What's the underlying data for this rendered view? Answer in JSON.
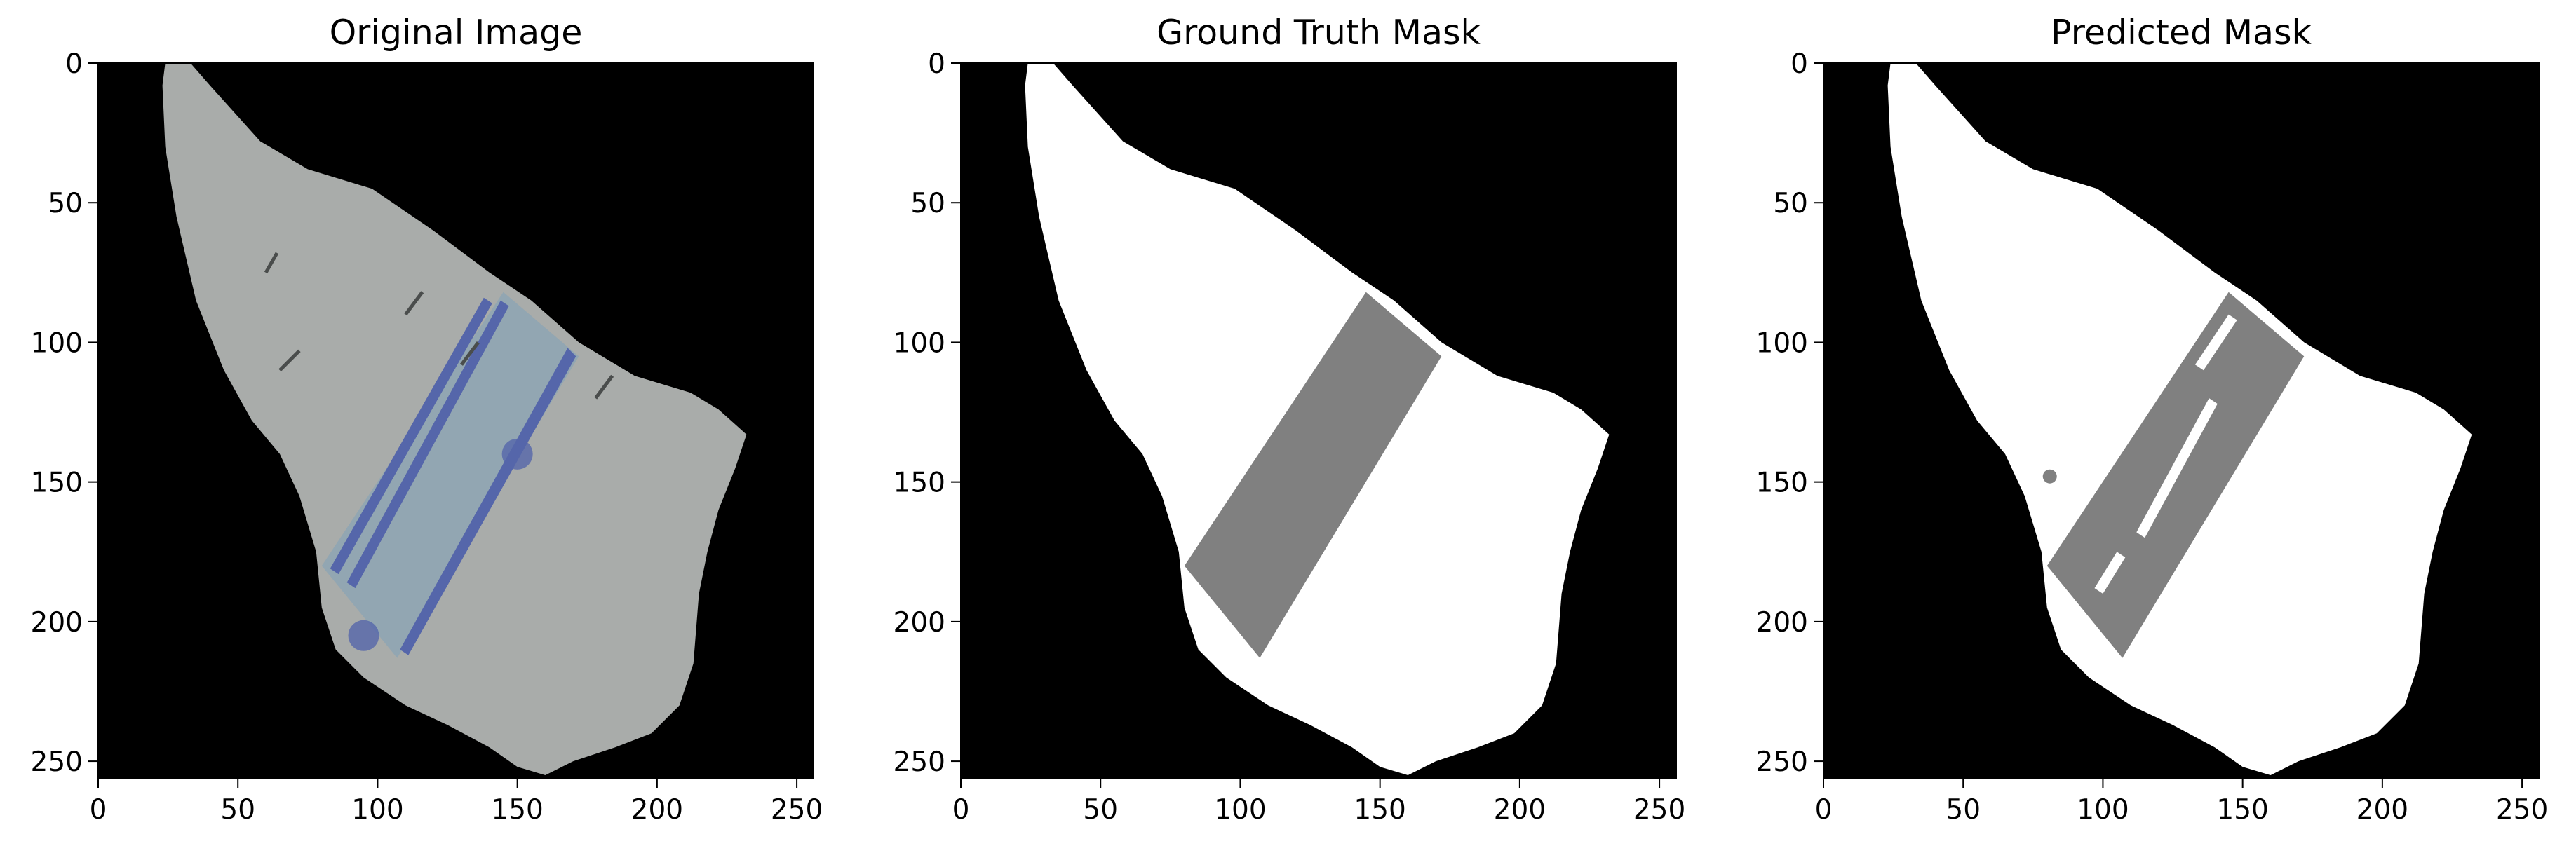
{
  "figure": {
    "panels": [
      {
        "title": "Original Image",
        "content": "photo",
        "x_ticks": [
          "0",
          "50",
          "100",
          "150",
          "200",
          "250"
        ],
        "y_ticks": [
          "0",
          "50",
          "100",
          "150",
          "200",
          "250"
        ]
      },
      {
        "title": "Ground Truth Mask",
        "content": "gt_mask",
        "x_ticks": [
          "0",
          "50",
          "100",
          "150",
          "200",
          "250"
        ],
        "y_ticks": [
          "0",
          "50",
          "100",
          "150",
          "200",
          "250"
        ]
      },
      {
        "title": "Predicted Mask",
        "content": "pred_mask",
        "x_ticks": [
          "0",
          "50",
          "100",
          "150",
          "200",
          "250"
        ],
        "y_ticks": [
          "0",
          "50",
          "100",
          "150",
          "200",
          "250"
        ]
      }
    ],
    "colors": {
      "background": "#000000",
      "sherd": "#a9acaa",
      "band_blue": "#5566aa",
      "band_fill": "#7fa3b8",
      "mask_white": "#ffffff",
      "mask_gray": "#808080"
    },
    "icons": [
      "shard-image",
      "ground-truth-mask",
      "predicted-mask"
    ]
  }
}
